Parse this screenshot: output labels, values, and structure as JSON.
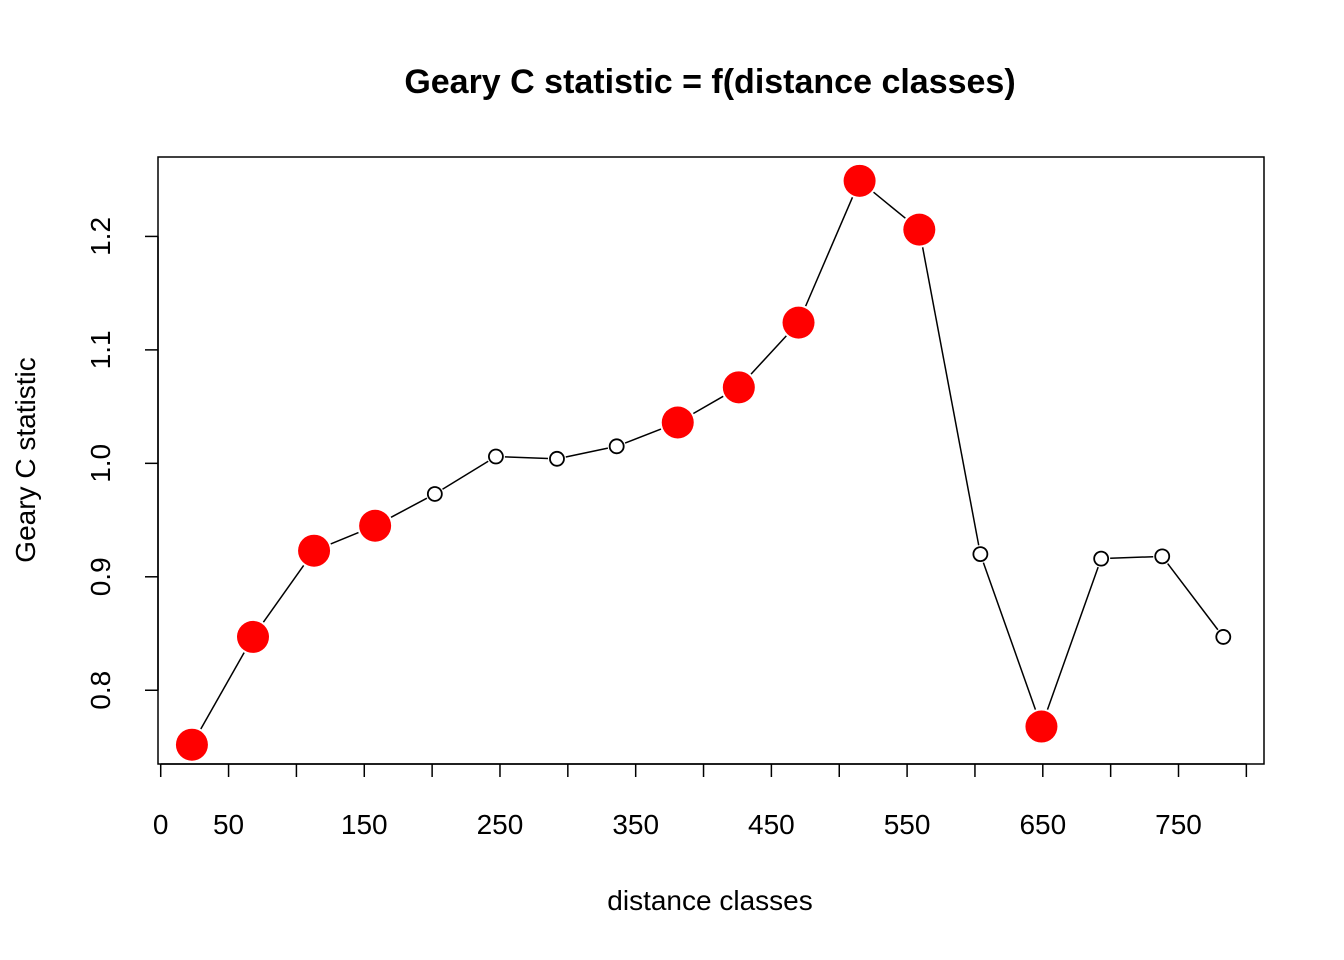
{
  "chart_data": {
    "type": "line",
    "title": "Geary C statistic = f(distance classes)",
    "xlabel": "distance classes",
    "ylabel": "Geary C statistic",
    "xlim": [
      -2,
      813
    ],
    "ylim": [
      0.735,
      1.27
    ],
    "x_ticks": [
      0,
      50,
      150,
      250,
      350,
      450,
      550,
      650,
      750
    ],
    "x_tick_marks": [
      0,
      50,
      100,
      150,
      200,
      250,
      300,
      350,
      400,
      450,
      500,
      550,
      600,
      650,
      700,
      750,
      800
    ],
    "y_ticks": [
      0.8,
      0.9,
      1.0,
      1.1,
      1.2
    ],
    "y_tick_labels": [
      "0.8",
      "0.9",
      "1.0",
      "1.1",
      "1.2"
    ],
    "grid": false,
    "marker_legend": {
      "significant": {
        "color": "#ff0000",
        "style": "filled large circle"
      },
      "not_significant": {
        "color": "#ffffff",
        "stroke": "#000000",
        "style": "open small circle"
      }
    },
    "x": [
      23,
      68,
      113,
      158,
      202,
      247,
      292,
      336,
      381,
      426,
      470,
      515,
      559,
      604,
      649,
      693,
      738,
      783
    ],
    "values": [
      0.752,
      0.847,
      0.923,
      0.945,
      0.973,
      1.006,
      1.004,
      1.015,
      1.036,
      1.067,
      1.124,
      1.249,
      1.206,
      0.92,
      0.768,
      0.916,
      0.918,
      0.847
    ],
    "significant": [
      true,
      true,
      true,
      true,
      false,
      false,
      false,
      false,
      true,
      true,
      true,
      true,
      true,
      false,
      true,
      false,
      false,
      false
    ]
  }
}
